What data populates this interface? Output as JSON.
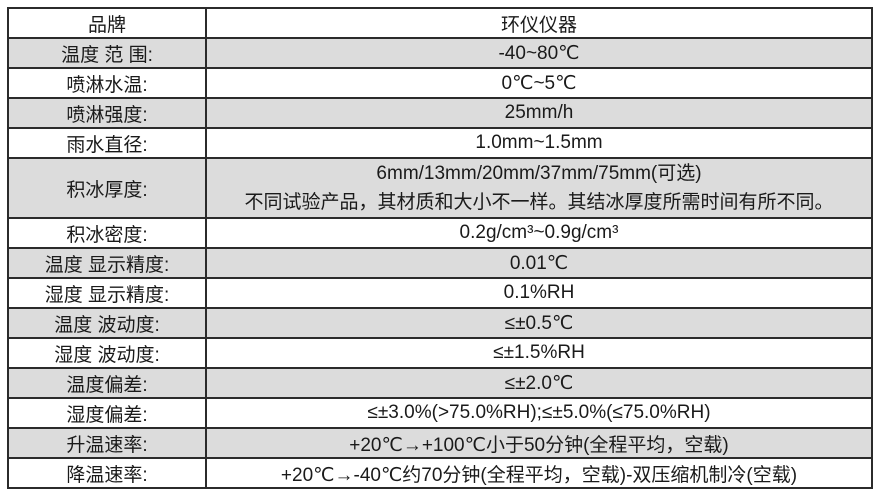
{
  "table": {
    "header": {
      "col1": "品牌",
      "col2": "环仪仪器"
    },
    "rows": [
      {
        "label": "温度 范 围:",
        "value": "-40~80℃",
        "shaded": true
      },
      {
        "label": "喷淋水温:",
        "value": "0℃~5℃",
        "shaded": false
      },
      {
        "label": "喷淋强度:",
        "value": "25mm/h",
        "shaded": true
      },
      {
        "label": "雨水直径:",
        "value": "1.0mm~1.5mm",
        "shaded": false
      },
      {
        "label": "积冰厚度:",
        "value": "6mm/13mm/20mm/37mm/75mm(可选)",
        "value_line2": "不同试验产品，其材质和大小不一样。其结冰厚度所需时间有所不同。",
        "shaded": true
      },
      {
        "label": "积冰密度:",
        "value": "0.2g/cm³~0.9g/cm³",
        "shaded": false
      },
      {
        "label": "温度 显示精度:",
        "value": "0.01℃",
        "shaded": true
      },
      {
        "label": "湿度 显示精度:",
        "value": "0.1%RH",
        "shaded": false
      },
      {
        "label": "温度 波动度:",
        "value": "≤±0.5℃",
        "shaded": true
      },
      {
        "label": "湿度 波动度:",
        "value": "≤±1.5%RH",
        "shaded": false
      },
      {
        "label": "温度偏差:",
        "value": "≤±2.0℃",
        "shaded": true
      },
      {
        "label": "湿度偏差:",
        "value": "≤±3.0%(>75.0%RH);≤±5.0%(≤75.0%RH)",
        "shaded": false
      },
      {
        "label": "升温速率:",
        "value": "+20℃→+100℃小于50分钟(全程平均，空载)",
        "shaded": true
      },
      {
        "label": "降温速率:",
        "value": "+20℃→-40℃约70分钟(全程平均，空载)-双压缩机制冷(空载)",
        "shaded": false
      }
    ],
    "colors": {
      "shaded_row_bg": "#dcdcdc",
      "row_bg": "#ffffff",
      "border": "#2b2b2b",
      "text": "#1a1a1a"
    }
  }
}
